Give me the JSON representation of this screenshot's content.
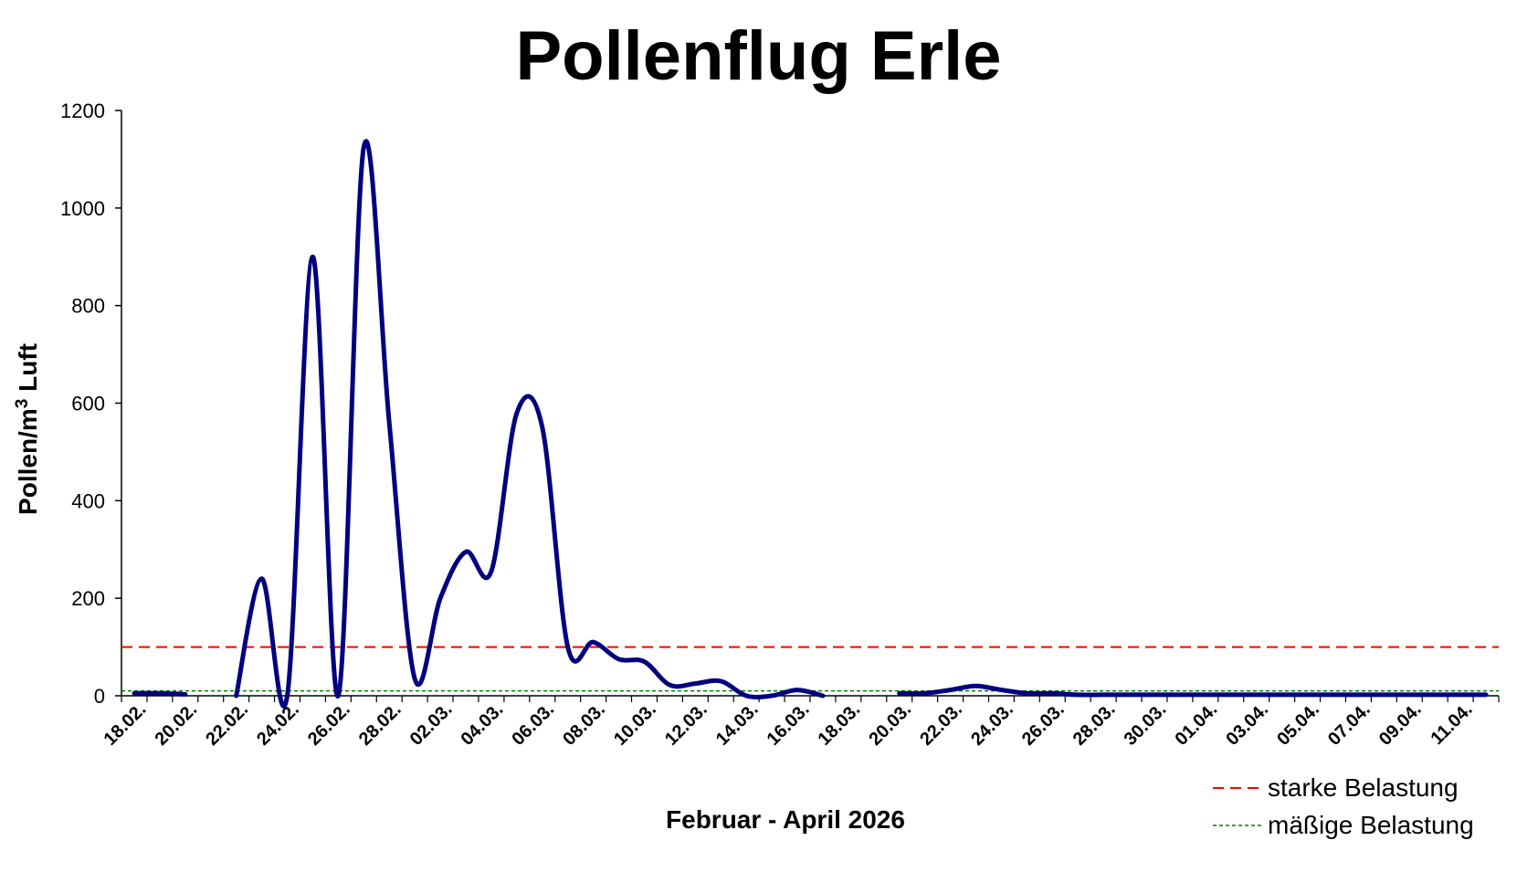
{
  "chart_data": {
    "type": "line",
    "title": "Pollenflug Erle",
    "xlabel": "Februar - April 2026",
    "ylabel": "Pollen/m³ Luft",
    "ylabel_parts": {
      "before": "Pollen/m",
      "sup": "3",
      "after": " Luft"
    },
    "ylim": [
      0,
      1200
    ],
    "y_ticks": [
      0,
      200,
      400,
      600,
      800,
      1000,
      1200
    ],
    "x_ticks": [
      "18.02.",
      "20.02.",
      "22.02.",
      "24.02.",
      "26.02.",
      "28.02.",
      "02.03.",
      "04.03.",
      "06.03.",
      "08.03.",
      "10.03.",
      "12.03.",
      "14.03.",
      "16.03.",
      "18.03.",
      "20.03.",
      "22.03.",
      "24.03.",
      "26.03.",
      "28.03.",
      "30.03.",
      "01.04.",
      "03.04.",
      "05.04.",
      "07.04.",
      "09.04.",
      "11.04."
    ],
    "grid": false,
    "legend_position": "bottom-right",
    "series": [
      {
        "name": "",
        "color": "#000080",
        "dates": [
          "18.02.",
          "19.02.",
          "20.02.",
          "21.02.",
          "22.02.",
          "23.02.",
          "24.02.",
          "25.02.",
          "26.02.",
          "27.02.",
          "28.02.",
          "01.03.",
          "02.03.",
          "03.03.",
          "04.03.",
          "05.03.",
          "06.03.",
          "07.03.",
          "08.03.",
          "09.03.",
          "10.03.",
          "11.03.",
          "12.03.",
          "13.03.",
          "14.03.",
          "15.03.",
          "16.03.",
          "17.03.",
          "18.03.",
          "19.03.",
          "20.03.",
          "21.03.",
          "22.03.",
          "23.03.",
          "24.03.",
          "25.03.",
          "26.03.",
          "27.03.",
          "28.03.",
          "29.03.",
          "30.03.",
          "31.03.",
          "01.04.",
          "02.04.",
          "03.04.",
          "04.04.",
          "05.04.",
          "06.04.",
          "07.04.",
          "08.04.",
          "09.04.",
          "10.04.",
          "11.04.",
          "12.04."
        ],
        "values": [
          5,
          5,
          3,
          null,
          0,
          240,
          0,
          900,
          0,
          1125,
          560,
          35,
          200,
          295,
          255,
          580,
          550,
          100,
          110,
          75,
          70,
          22,
          25,
          30,
          0,
          0,
          12,
          0,
          null,
          null,
          5,
          5,
          12,
          20,
          12,
          5,
          5,
          2,
          2,
          2,
          2,
          2,
          2,
          2,
          2,
          2,
          2,
          2,
          2,
          2,
          2,
          2,
          2,
          2
        ]
      }
    ],
    "thresholds": [
      {
        "name": "starke Belastung",
        "value": 100,
        "color": "#ff0000",
        "style": "dashed"
      },
      {
        "name": "mäßige Belastung",
        "value": 10,
        "color": "#008000",
        "style": "dotted"
      }
    ]
  }
}
